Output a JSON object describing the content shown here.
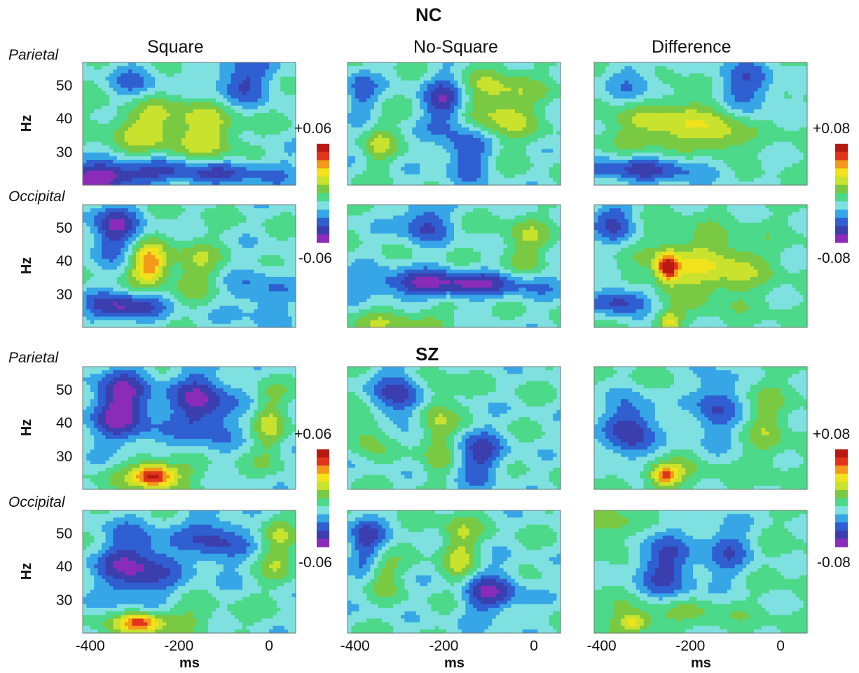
{
  "groups": [
    {
      "name": "NC",
      "rows": [
        {
          "region": "Parietal",
          "panels": [
            {
              "column": "Square",
              "blobs": [
                {
                  "f": 38,
                  "t": -250,
                  "st": 80,
                  "sf": 6,
                  "v": 0.03
                },
                {
                  "f": 34,
                  "t": -120,
                  "st": 40,
                  "sf": 6,
                  "v": 0.022
                },
                {
                  "f": 22,
                  "t": -380,
                  "st": 60,
                  "sf": 3,
                  "v": -0.045
                },
                {
                  "f": 24,
                  "t": -150,
                  "st": 150,
                  "sf": 3,
                  "v": -0.03
                },
                {
                  "f": 52,
                  "t": -60,
                  "st": 50,
                  "sf": 5,
                  "v": -0.03
                },
                {
                  "f": 50,
                  "t": -300,
                  "st": 40,
                  "sf": 5,
                  "v": -0.02
                }
              ]
            },
            {
              "column": "No-Square",
              "blobs": [
                {
                  "f": 44,
                  "t": -80,
                  "st": 60,
                  "sf": 8,
                  "v": 0.03
                },
                {
                  "f": 33,
                  "t": -350,
                  "st": 25,
                  "sf": 5,
                  "v": 0.02
                },
                {
                  "f": 45,
                  "t": -200,
                  "st": 35,
                  "sf": 6,
                  "v": -0.035
                },
                {
                  "f": 30,
                  "t": -150,
                  "st": 40,
                  "sf": 6,
                  "v": -0.03
                },
                {
                  "f": 48,
                  "t": -390,
                  "st": 25,
                  "sf": 5,
                  "v": -0.025
                }
              ]
            },
            {
              "column": "Difference",
              "blobs": [
                {
                  "f": 38,
                  "t": -260,
                  "st": 80,
                  "sf": 6,
                  "v": 0.035
                },
                {
                  "f": 36,
                  "t": -130,
                  "st": 40,
                  "sf": 6,
                  "v": 0.025
                },
                {
                  "f": 25,
                  "t": -300,
                  "st": 120,
                  "sf": 3,
                  "v": -0.045
                },
                {
                  "f": 50,
                  "t": -80,
                  "st": 50,
                  "sf": 6,
                  "v": -0.04
                },
                {
                  "f": 50,
                  "t": -330,
                  "st": 40,
                  "sf": 5,
                  "v": -0.03
                }
              ]
            }
          ]
        },
        {
          "region": "Occipital",
          "panels": [
            {
              "column": "Square",
              "blobs": [
                {
                  "f": 39,
                  "t": -270,
                  "st": 28,
                  "sf": 4,
                  "v": 0.052
                },
                {
                  "f": 38,
                  "t": -170,
                  "st": 45,
                  "sf": 6,
                  "v": 0.02
                },
                {
                  "f": 26,
                  "t": -330,
                  "st": 60,
                  "sf": 3,
                  "v": -0.04
                },
                {
                  "f": 50,
                  "t": -350,
                  "st": 40,
                  "sf": 6,
                  "v": -0.035
                },
                {
                  "f": 30,
                  "t": -20,
                  "st": 50,
                  "sf": 6,
                  "v": -0.02
                }
              ]
            },
            {
              "column": "No-Square",
              "blobs": [
                {
                  "f": 33,
                  "t": -200,
                  "st": 150,
                  "sf": 3,
                  "v": -0.04
                },
                {
                  "f": 22,
                  "t": -300,
                  "st": 80,
                  "sf": 3,
                  "v": 0.02
                },
                {
                  "f": 45,
                  "t": -20,
                  "st": 40,
                  "sf": 6,
                  "v": 0.02
                },
                {
                  "f": 52,
                  "t": -250,
                  "st": 40,
                  "sf": 5,
                  "v": -0.03
                }
              ]
            },
            {
              "column": "Difference",
              "blobs": [
                {
                  "f": 38,
                  "t": -255,
                  "st": 18,
                  "sf": 3,
                  "v": 0.075
                },
                {
                  "f": 38,
                  "t": -200,
                  "st": 70,
                  "sf": 7,
                  "v": 0.03
                },
                {
                  "f": 38,
                  "t": -100,
                  "st": 50,
                  "sf": 6,
                  "v": 0.02
                },
                {
                  "f": 22,
                  "t": -250,
                  "st": 20,
                  "sf": 2,
                  "v": 0.04
                },
                {
                  "f": 28,
                  "t": -360,
                  "st": 50,
                  "sf": 3,
                  "v": -0.05
                },
                {
                  "f": 52,
                  "t": -380,
                  "st": 40,
                  "sf": 5,
                  "v": -0.04
                }
              ]
            }
          ]
        }
      ]
    },
    {
      "name": "SZ",
      "rows": [
        {
          "region": "Parietal",
          "panels": [
            {
              "column": "Square",
              "blobs": [
                {
                  "f": 24,
                  "t": -260,
                  "st": 30,
                  "sf": 2.5,
                  "v": 0.055
                },
                {
                  "f": 25,
                  "t": -250,
                  "st": 80,
                  "sf": 3,
                  "v": 0.02
                },
                {
                  "f": 45,
                  "t": -330,
                  "st": 50,
                  "sf": 8,
                  "v": -0.045
                },
                {
                  "f": 45,
                  "t": -150,
                  "st": 50,
                  "sf": 8,
                  "v": -0.04
                },
                {
                  "f": 40,
                  "t": 0,
                  "st": 25,
                  "sf": 8,
                  "v": 0.02
                }
              ]
            },
            {
              "column": "No-Square",
              "blobs": [
                {
                  "f": 40,
                  "t": -220,
                  "st": 30,
                  "sf": 10,
                  "v": 0.025
                },
                {
                  "f": 38,
                  "t": -380,
                  "st": 30,
                  "sf": 5,
                  "v": 0.02
                },
                {
                  "f": 48,
                  "t": -300,
                  "st": 40,
                  "sf": 6,
                  "v": -0.035
                },
                {
                  "f": 30,
                  "t": -120,
                  "st": 40,
                  "sf": 6,
                  "v": -0.03
                }
              ]
            },
            {
              "column": "Difference",
              "blobs": [
                {
                  "f": 24,
                  "t": -260,
                  "st": 20,
                  "sf": 2,
                  "v": 0.06
                },
                {
                  "f": 25,
                  "t": -260,
                  "st": 60,
                  "sf": 3,
                  "v": 0.02
                },
                {
                  "f": 38,
                  "t": -340,
                  "st": 40,
                  "sf": 7,
                  "v": -0.055
                },
                {
                  "f": 45,
                  "t": -150,
                  "st": 40,
                  "sf": 8,
                  "v": -0.04
                },
                {
                  "f": 40,
                  "t": -30,
                  "st": 30,
                  "sf": 8,
                  "v": 0.02
                }
              ]
            }
          ]
        },
        {
          "region": "Occipital",
          "panels": [
            {
              "column": "Square",
              "blobs": [
                {
                  "f": 23,
                  "t": -290,
                  "st": 30,
                  "sf": 2,
                  "v": 0.045
                },
                {
                  "f": 24,
                  "t": -250,
                  "st": 100,
                  "sf": 3,
                  "v": 0.02
                },
                {
                  "f": 40,
                  "t": -300,
                  "st": 60,
                  "sf": 8,
                  "v": -0.04
                },
                {
                  "f": 48,
                  "t": -120,
                  "st": 50,
                  "sf": 6,
                  "v": -0.03
                },
                {
                  "f": 45,
                  "t": 20,
                  "st": 30,
                  "sf": 7,
                  "v": 0.02
                }
              ]
            },
            {
              "column": "No-Square",
              "blobs": [
                {
                  "f": 45,
                  "t": -170,
                  "st": 30,
                  "sf": 8,
                  "v": 0.025
                },
                {
                  "f": 38,
                  "t": -340,
                  "st": 25,
                  "sf": 4,
                  "v": 0.02
                },
                {
                  "f": 32,
                  "t": -100,
                  "st": 50,
                  "sf": 5,
                  "v": -0.035
                },
                {
                  "f": 48,
                  "t": -380,
                  "st": 30,
                  "sf": 6,
                  "v": -0.03
                }
              ]
            },
            {
              "column": "Difference",
              "blobs": [
                {
                  "f": 23,
                  "t": -330,
                  "st": 25,
                  "sf": 2,
                  "v": 0.04
                },
                {
                  "f": 26,
                  "t": -260,
                  "st": 100,
                  "sf": 3,
                  "v": 0.02
                },
                {
                  "f": 40,
                  "t": -260,
                  "st": 50,
                  "sf": 8,
                  "v": -0.045
                },
                {
                  "f": 45,
                  "t": -120,
                  "st": 40,
                  "sf": 7,
                  "v": -0.035
                },
                {
                  "f": 52,
                  "t": -380,
                  "st": 40,
                  "sf": 5,
                  "v": 0.02
                }
              ]
            }
          ]
        }
      ]
    }
  ],
  "columns": [
    "Square",
    "No-Square",
    "Difference"
  ],
  "regions": [
    "Parietal",
    "Occipital"
  ]
}
